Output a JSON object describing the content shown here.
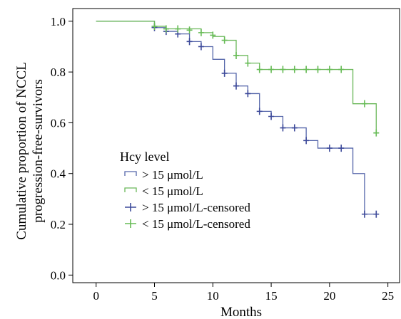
{
  "chart_data": {
    "type": "line",
    "title": "",
    "xlabel": "Months",
    "ylabel_lines": [
      "Cumulative proportion of NCCL",
      "progression-free-survivors"
    ],
    "xlim": [
      -2,
      26
    ],
    "ylim": [
      -0.03,
      1.05
    ],
    "xticks": [
      0,
      5,
      10,
      15,
      20,
      25
    ],
    "yticks": [
      0.0,
      0.2,
      0.4,
      0.6,
      0.8,
      1.0
    ],
    "xtick_labels": [
      "0",
      "5",
      "10",
      "15",
      "20",
      "25"
    ],
    "ytick_labels": [
      "0.0",
      "0.2",
      "0.4",
      "0.6",
      "0.8",
      "1.0"
    ],
    "grid": false,
    "legend": {
      "title": "Hcy level",
      "placement": "center-left",
      "entries": [
        {
          "label": "> 15 μmol/L",
          "marker": "step",
          "color": "#5566aa"
        },
        {
          "label": "< 15 μmol/L",
          "marker": "step",
          "color": "#6bb85a"
        },
        {
          "label": "> 15 μmol/L-censored",
          "marker": "cross",
          "color": "#3d4a9a"
        },
        {
          "label": "< 15 μmol/L-censored",
          "marker": "cross",
          "color": "#66bb55"
        }
      ]
    },
    "series": [
      {
        "color": "#5566aa",
        "censor_color": "#3d4a9a",
        "steps": [
          [
            0,
            1.0
          ],
          [
            5,
            0.975
          ],
          [
            6,
            0.96
          ],
          [
            7,
            0.95
          ],
          [
            8,
            0.92
          ],
          [
            9,
            0.9
          ],
          [
            10,
            0.85
          ],
          [
            11,
            0.795
          ],
          [
            12,
            0.745
          ],
          [
            13,
            0.715
          ],
          [
            14,
            0.645
          ],
          [
            15,
            0.625
          ],
          [
            16,
            0.58
          ],
          [
            18,
            0.53
          ],
          [
            19,
            0.5
          ],
          [
            22,
            0.4
          ],
          [
            23,
            0.24
          ],
          [
            24,
            0.24
          ]
        ],
        "censored": [
          [
            5,
            0.975
          ],
          [
            6,
            0.96
          ],
          [
            7,
            0.95
          ],
          [
            8,
            0.92
          ],
          [
            9,
            0.9
          ],
          [
            11,
            0.795
          ],
          [
            12,
            0.745
          ],
          [
            13,
            0.715
          ],
          [
            14,
            0.645
          ],
          [
            15,
            0.625
          ],
          [
            16,
            0.58
          ],
          [
            17,
            0.58
          ],
          [
            18,
            0.53
          ],
          [
            20,
            0.5
          ],
          [
            21,
            0.5
          ],
          [
            23,
            0.24
          ],
          [
            24,
            0.24
          ]
        ]
      },
      {
        "color": "#6bb85a",
        "censor_color": "#66bb55",
        "steps": [
          [
            0,
            1.0
          ],
          [
            5,
            0.98
          ],
          [
            6,
            0.97
          ],
          [
            9,
            0.955
          ],
          [
            10,
            0.94
          ],
          [
            11,
            0.925
          ],
          [
            12,
            0.865
          ],
          [
            13,
            0.835
          ],
          [
            14,
            0.81
          ],
          [
            22,
            0.675
          ],
          [
            24,
            0.56
          ]
        ],
        "censored": [
          [
            5,
            0.98
          ],
          [
            6,
            0.97
          ],
          [
            7,
            0.97
          ],
          [
            8,
            0.965
          ],
          [
            9,
            0.955
          ],
          [
            10,
            0.945
          ],
          [
            11,
            0.925
          ],
          [
            12,
            0.865
          ],
          [
            13,
            0.835
          ],
          [
            14,
            0.81
          ],
          [
            15,
            0.81
          ],
          [
            16,
            0.81
          ],
          [
            17,
            0.81
          ],
          [
            18,
            0.81
          ],
          [
            19,
            0.81
          ],
          [
            20,
            0.81
          ],
          [
            21,
            0.81
          ],
          [
            23,
            0.675
          ],
          [
            24,
            0.56
          ]
        ]
      }
    ]
  }
}
